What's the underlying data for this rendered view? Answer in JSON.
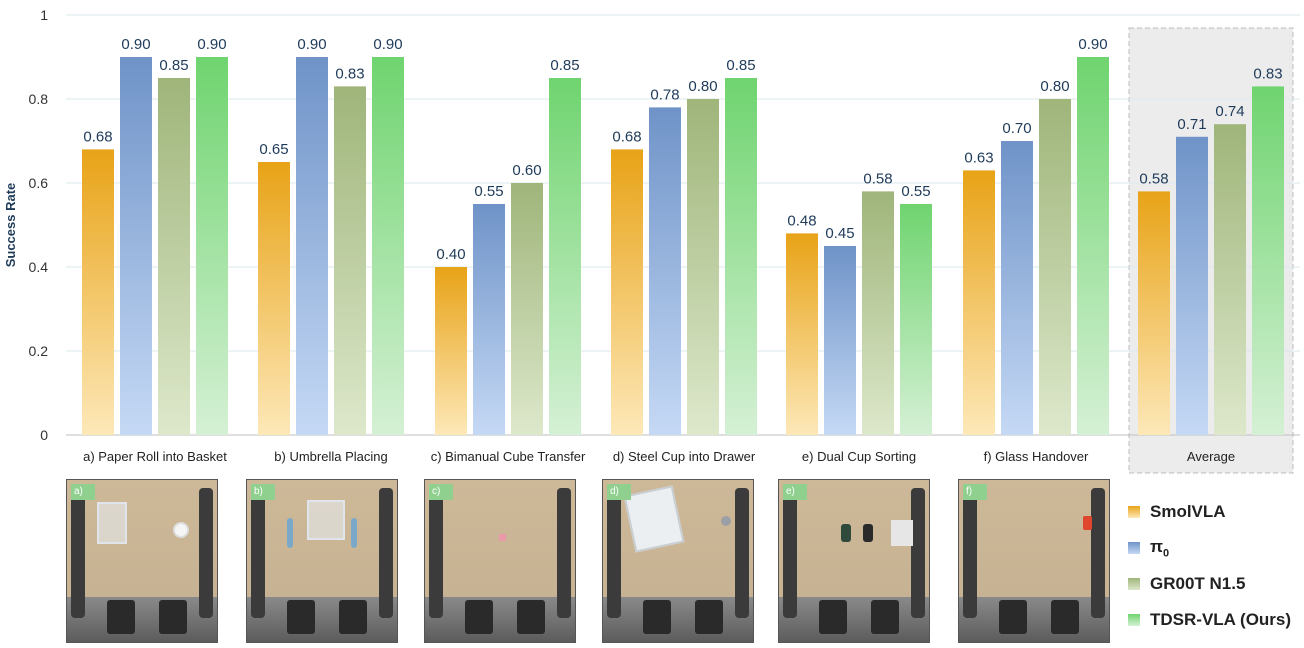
{
  "chart_data": {
    "type": "bar",
    "ylabel": "Success Rate",
    "ylim": [
      0,
      1
    ],
    "yticks": [
      "0",
      "0.2",
      "0.4",
      "0.6",
      "0.8",
      "1"
    ],
    "categories": [
      "a) Paper Roll into Basket",
      "b) Umbrella Placing",
      "c) Bimanual Cube Transfer",
      "d) Steel Cup into Drawer",
      "e) Dual Cup Sorting",
      "f) Glass Handover",
      "Average"
    ],
    "series": [
      {
        "name": "SmolVLA",
        "color": "#e8a317",
        "light": "#fde8b8",
        "values": [
          0.68,
          0.65,
          0.4,
          0.68,
          0.48,
          0.63,
          0.58
        ],
        "labels": [
          "0.68",
          "0.65",
          "0.40",
          "0.68",
          "0.48",
          "0.63",
          "0.58"
        ]
      },
      {
        "name": "π",
        "name_sub": "0",
        "color": "#6f93c8",
        "light": "#c5d9f5",
        "values": [
          0.9,
          0.9,
          0.55,
          0.78,
          0.45,
          0.7,
          0.71
        ],
        "labels": [
          "0.90",
          "0.90",
          "0.55",
          "0.78",
          "0.45",
          "0.70",
          "0.71"
        ]
      },
      {
        "name": "GR00T N1.5",
        "color": "#9fb57a",
        "light": "#dde8cb",
        "values": [
          0.85,
          0.83,
          0.6,
          0.8,
          0.58,
          0.8,
          0.74
        ],
        "labels": [
          "0.85",
          "0.83",
          "0.60",
          "0.80",
          "0.58",
          "0.80",
          "0.74"
        ]
      },
      {
        "name": "TDSR-VLA (Ours)",
        "color": "#6fd46f",
        "light": "#d5f0d5",
        "values": [
          0.9,
          0.9,
          0.85,
          0.85,
          0.55,
          0.9,
          0.83
        ],
        "labels": [
          "0.90",
          "0.90",
          "0.85",
          "0.85",
          "0.55",
          "0.90",
          "0.83"
        ]
      }
    ],
    "grid": true,
    "legend_position": "bottom-right",
    "highlight_category": "Average"
  },
  "thumbnails": [
    {
      "tag": "a)"
    },
    {
      "tag": "b)"
    },
    {
      "tag": "c)"
    },
    {
      "tag": "d)"
    },
    {
      "tag": "e)"
    },
    {
      "tag": "f)"
    }
  ]
}
